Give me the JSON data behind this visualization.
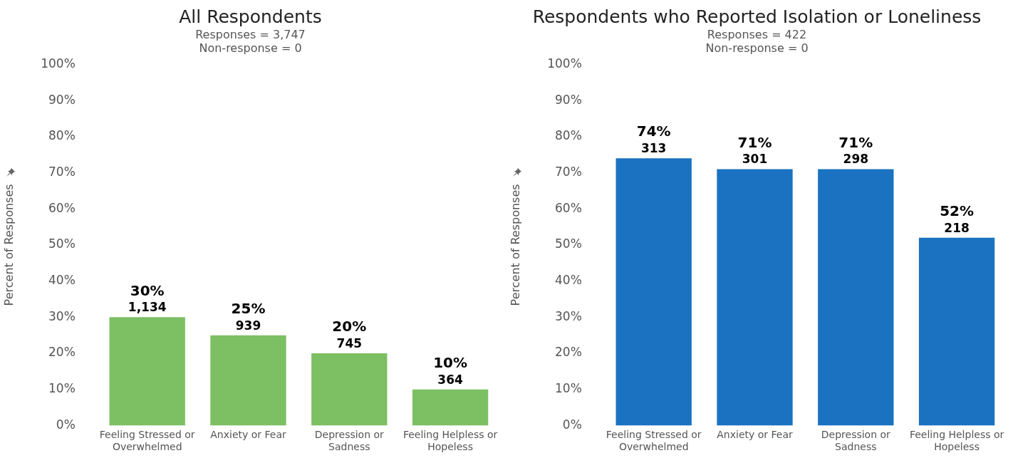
{
  "chart_data": [
    {
      "type": "bar",
      "title": "All Respondents",
      "subtitle": "Responses = 3,747\nNon-response = 0",
      "ylabel": "Percent of Responses",
      "categories": [
        "Feeling Stressed or Overwhelmed",
        "Anxiety or Fear",
        "Depression or Sadness",
        "Feeling Helpless or Hopeless"
      ],
      "values": [
        30,
        25,
        20,
        10
      ],
      "color": "#7dbf63",
      "value_labels": [
        "30%\n1,134",
        "25%\n939",
        "20%\n745",
        "10%\n364"
      ],
      "ylim": [
        0,
        100
      ],
      "yticks": [
        {
          "value": 0,
          "label": "0%"
        },
        {
          "value": 10,
          "label": "10%"
        },
        {
          "value": 20,
          "label": "20%"
        },
        {
          "value": 30,
          "label": "30%"
        },
        {
          "value": 40,
          "label": "40%"
        },
        {
          "value": 50,
          "label": "50%"
        },
        {
          "value": 60,
          "label": "60%"
        },
        {
          "value": 70,
          "label": "70%"
        },
        {
          "value": 80,
          "label": "80%"
        },
        {
          "value": 90,
          "label": "90%"
        },
        {
          "value": 100,
          "label": "100%"
        }
      ],
      "grid": false,
      "legend": false
    },
    {
      "type": "bar",
      "title": "Respondents who Reported Isolation or Loneliness",
      "subtitle": "Responses = 422\nNon-response = 0",
      "ylabel": "Percent of Responses",
      "categories": [
        "Feeling Stressed or Overwhelmed",
        "Anxiety or Fear",
        "Depression or Sadness",
        "Feeling Helpless or Hopeless"
      ],
      "values": [
        74,
        71,
        71,
        52
      ],
      "color": "#1a72c0",
      "value_labels": [
        "74%\n313",
        "71%\n301",
        "71%\n298",
        "52%\n218"
      ],
      "ylim": [
        0,
        100
      ],
      "yticks": [
        {
          "value": 0,
          "label": "0%"
        },
        {
          "value": 10,
          "label": "10%"
        },
        {
          "value": 20,
          "label": "20%"
        },
        {
          "value": 30,
          "label": "30%"
        },
        {
          "value": 40,
          "label": "40%"
        },
        {
          "value": 50,
          "label": "50%"
        },
        {
          "value": 60,
          "label": "60%"
        },
        {
          "value": 70,
          "label": "70%"
        },
        {
          "value": 80,
          "label": "80%"
        },
        {
          "value": 90,
          "label": "90%"
        },
        {
          "value": 100,
          "label": "100%"
        }
      ],
      "grid": false,
      "legend": false
    }
  ]
}
